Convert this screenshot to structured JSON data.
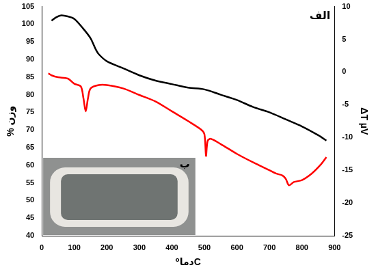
{
  "chart_data": {
    "type": "line",
    "x_label": "دما⁰C",
    "y_label": "% وزن",
    "y2_label": "ΔT µV",
    "annotations": [
      "الف",
      "ب"
    ],
    "xlim": [
      0,
      900
    ],
    "xticks": [
      0,
      100,
      200,
      300,
      400,
      500,
      600,
      700,
      800,
      900
    ],
    "ylim": [
      40,
      105
    ],
    "yticks": [
      40,
      45,
      50,
      55,
      60,
      65,
      70,
      75,
      80,
      85,
      90,
      95,
      100,
      105
    ],
    "y2lim": [
      -25,
      10
    ],
    "y2ticks": [
      -25,
      -20,
      -15,
      -10,
      -5,
      0,
      5,
      10
    ],
    "grid": false,
    "series": [
      {
        "color": "#000000",
        "axis": "y",
        "x": [
          30,
          45,
          60,
          80,
          100,
          125,
          150,
          165,
          175,
          200,
          250,
          300,
          350,
          400,
          450,
          500,
          550,
          600,
          650,
          700,
          750,
          800,
          850,
          875
        ],
        "values": [
          101,
          102,
          102.5,
          102.2,
          101.5,
          99,
          96,
          93,
          91.5,
          89.5,
          87.5,
          85.5,
          84,
          83,
          82,
          81.5,
          80,
          78.5,
          76.5,
          75,
          73,
          71,
          68.5,
          67
        ]
      },
      {
        "color": "#ff0000",
        "axis": "y2",
        "x": [
          20,
          30,
          50,
          80,
          100,
          120,
          128,
          135,
          142,
          150,
          175,
          200,
          250,
          300,
          350,
          400,
          450,
          490,
          500,
          505,
          510,
          520,
          550,
          600,
          650,
          700,
          720,
          740,
          750,
          760,
          775,
          800,
          830,
          860,
          875
        ],
        "values": [
          -0.2,
          -0.5,
          -0.8,
          -1,
          -1.8,
          -2.2,
          -4,
          -6,
          -4,
          -2.5,
          -2,
          -2,
          -2.5,
          -3.5,
          -4.5,
          -6,
          -7.5,
          -8.8,
          -9.5,
          -12.8,
          -10.5,
          -10.2,
          -11,
          -12.5,
          -13.8,
          -15,
          -15.5,
          -15.8,
          -16.3,
          -17.3,
          -16.8,
          -16.5,
          -15.5,
          -14,
          -13
        ]
      }
    ]
  }
}
